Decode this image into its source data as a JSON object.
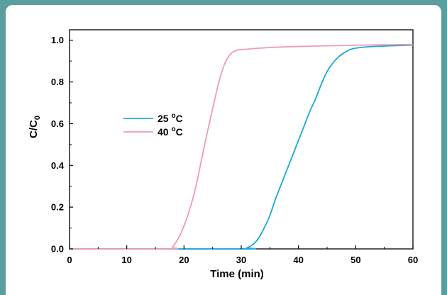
{
  "chart_data": {
    "type": "line",
    "xlabel": "Time (min)",
    "ylabel": {
      "main": "C/C",
      "sub": "0"
    },
    "xlim": [
      0,
      60
    ],
    "ylim": [
      0,
      1.05
    ],
    "xticks": [
      0,
      10,
      20,
      30,
      40,
      50,
      60
    ],
    "yticks": [
      0.0,
      0.2,
      0.4,
      0.6,
      0.8,
      1.0
    ],
    "xtick_labels": [
      "0",
      "10",
      "20",
      "30",
      "40",
      "50",
      "60"
    ],
    "ytick_labels": [
      "0.0",
      "0.2",
      "0.4",
      "0.6",
      "0.8",
      "1.0"
    ],
    "grid": false,
    "legend_position": "center-left",
    "series": [
      {
        "name": "25 °C",
        "label_main": "25 ",
        "label_sup": "o",
        "label_unit": "C",
        "color": "#1aa9d6",
        "x": [
          0,
          30,
          31,
          32,
          33,
          34,
          35,
          36,
          37,
          38,
          39,
          40,
          41,
          42,
          43,
          44,
          45,
          46,
          47,
          48,
          49,
          50,
          52,
          55,
          58,
          60
        ],
        "y": [
          0,
          0,
          0.005,
          0.02,
          0.05,
          0.1,
          0.16,
          0.24,
          0.31,
          0.38,
          0.45,
          0.52,
          0.59,
          0.66,
          0.72,
          0.79,
          0.85,
          0.89,
          0.92,
          0.94,
          0.955,
          0.962,
          0.968,
          0.972,
          0.975,
          0.977
        ]
      },
      {
        "name": "40 °C",
        "label_main": "40 ",
        "label_sup": "o",
        "label_unit": "C",
        "color": "#f29ab4",
        "x": [
          0,
          17.5,
          18,
          19,
          20,
          21,
          22,
          23,
          24,
          25,
          26,
          27,
          28,
          29,
          30,
          35,
          40,
          45,
          50,
          55,
          60
        ],
        "y": [
          0,
          0,
          0.01,
          0.05,
          0.11,
          0.19,
          0.29,
          0.42,
          0.55,
          0.67,
          0.79,
          0.88,
          0.93,
          0.95,
          0.955,
          0.965,
          0.97,
          0.973,
          0.976,
          0.978,
          0.98
        ]
      }
    ]
  }
}
